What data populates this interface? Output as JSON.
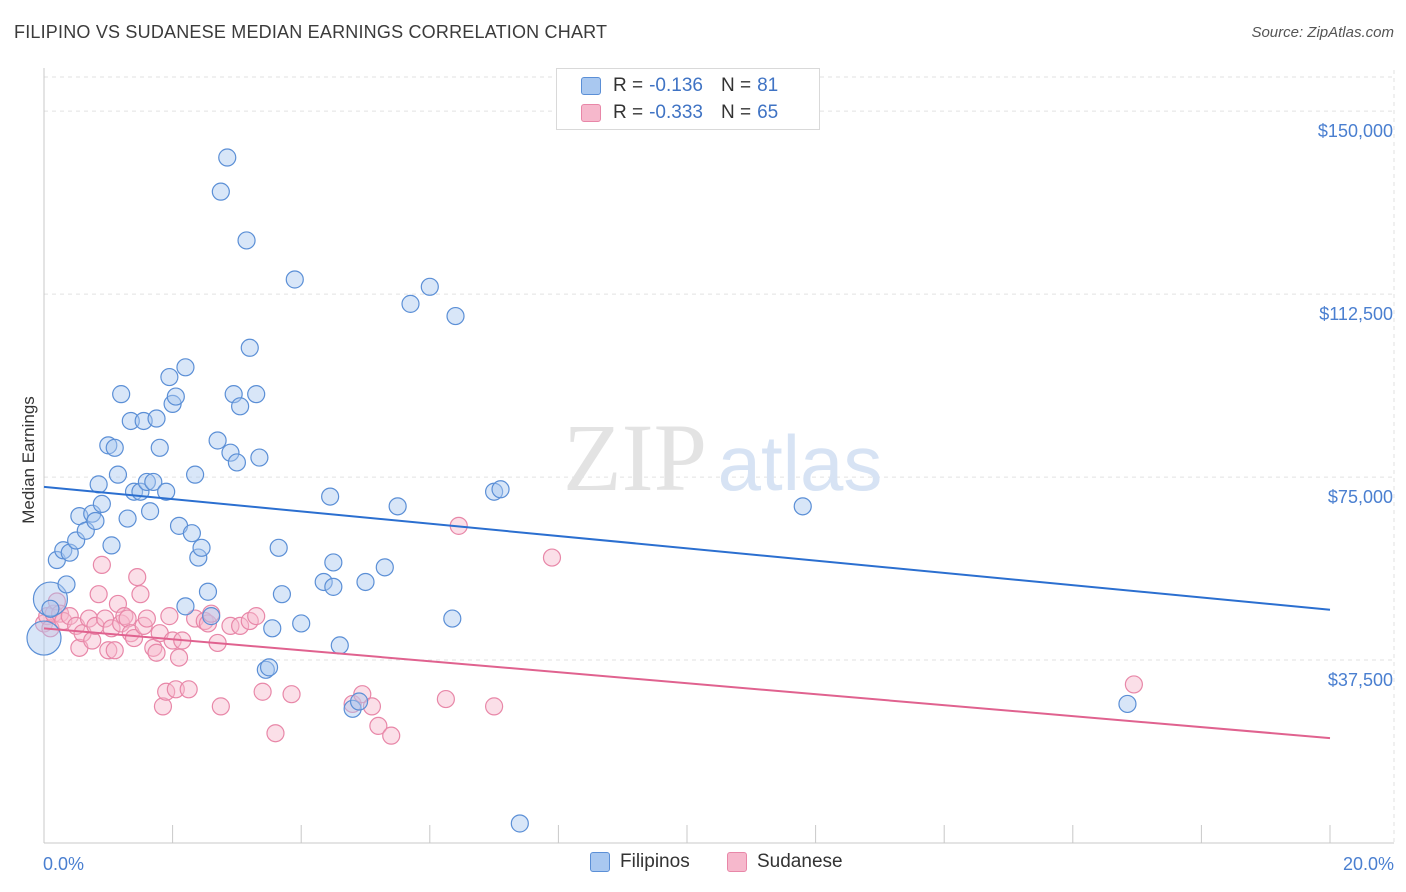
{
  "title": "FILIPINO VS SUDANESE MEDIAN EARNINGS CORRELATION CHART",
  "source": "Source: ZipAtlas.com",
  "watermark": {
    "zip": "ZIP",
    "atlas": "atlas"
  },
  "legend": {
    "rows": [
      {
        "r_label": "R =",
        "r_value": "-0.136",
        "n_label": "N =",
        "n_value": "81"
      },
      {
        "r_label": "R =",
        "r_value": "-0.333",
        "n_label": "N =",
        "n_value": "65"
      }
    ]
  },
  "colors": {
    "filipino_fill": "#a9c8f0",
    "filipino_stroke": "#5b8fd6",
    "filipino_line": "#2b6fd0",
    "sudanese_fill": "#f6b8cc",
    "sudanese_stroke": "#e887a8",
    "sudanese_line": "#e0628f",
    "grid": "#e2e2e2",
    "tick_text": "#4a7fd0"
  },
  "chart_data": {
    "type": "scatter",
    "title": "FILIPINO VS SUDANESE MEDIAN EARNINGS CORRELATION CHART",
    "xlabel": "",
    "ylabel": "Median Earnings",
    "xlim": [
      0,
      20
    ],
    "ylim": [
      0,
      157000
    ],
    "x_tick_labels": [
      "0.0%",
      "20.0%"
    ],
    "y_ticks": [
      {
        "value": 37500,
        "label": "$37,500"
      },
      {
        "value": 75000,
        "label": "$75,000"
      },
      {
        "value": 112500,
        "label": "$112,500"
      },
      {
        "value": 150000,
        "label": "$150,000"
      }
    ],
    "legend_position": "top-center",
    "series": [
      {
        "name": "Filipinos",
        "trend": {
          "x": [
            0,
            20
          ],
          "y": [
            73000,
            47800
          ]
        },
        "points": [
          {
            "x": 0.0,
            "y": 42000,
            "big": true
          },
          {
            "x": 0.1,
            "y": 50000,
            "big": true
          },
          {
            "x": 0.1,
            "y": 48000
          },
          {
            "x": 0.2,
            "y": 58000
          },
          {
            "x": 0.3,
            "y": 60000
          },
          {
            "x": 0.35,
            "y": 53000
          },
          {
            "x": 0.4,
            "y": 59500
          },
          {
            "x": 0.5,
            "y": 62000
          },
          {
            "x": 0.55,
            "y": 67000
          },
          {
            "x": 0.65,
            "y": 64000
          },
          {
            "x": 0.75,
            "y": 67500
          },
          {
            "x": 0.8,
            "y": 66000
          },
          {
            "x": 0.85,
            "y": 73500
          },
          {
            "x": 0.9,
            "y": 69500
          },
          {
            "x": 1.0,
            "y": 81500
          },
          {
            "x": 1.05,
            "y": 61000
          },
          {
            "x": 1.1,
            "y": 81000
          },
          {
            "x": 1.15,
            "y": 75500
          },
          {
            "x": 1.2,
            "y": 92000
          },
          {
            "x": 1.3,
            "y": 66500
          },
          {
            "x": 1.35,
            "y": 86500
          },
          {
            "x": 1.4,
            "y": 72000
          },
          {
            "x": 1.5,
            "y": 72000
          },
          {
            "x": 1.55,
            "y": 86500
          },
          {
            "x": 1.6,
            "y": 74000
          },
          {
            "x": 1.65,
            "y": 68000
          },
          {
            "x": 1.7,
            "y": 74000
          },
          {
            "x": 1.75,
            "y": 87000
          },
          {
            "x": 1.8,
            "y": 81000
          },
          {
            "x": 1.9,
            "y": 72000
          },
          {
            "x": 1.95,
            "y": 95500
          },
          {
            "x": 2.0,
            "y": 90000
          },
          {
            "x": 2.05,
            "y": 91500
          },
          {
            "x": 2.1,
            "y": 65000
          },
          {
            "x": 2.2,
            "y": 48500
          },
          {
            "x": 2.2,
            "y": 97500
          },
          {
            "x": 2.3,
            "y": 63500
          },
          {
            "x": 2.35,
            "y": 75500
          },
          {
            "x": 2.4,
            "y": 58500
          },
          {
            "x": 2.45,
            "y": 60500
          },
          {
            "x": 2.55,
            "y": 51500
          },
          {
            "x": 2.6,
            "y": 46500
          },
          {
            "x": 2.7,
            "y": 82500
          },
          {
            "x": 2.75,
            "y": 133500
          },
          {
            "x": 2.85,
            "y": 140500
          },
          {
            "x": 2.9,
            "y": 80000
          },
          {
            "x": 2.95,
            "y": 92000
          },
          {
            "x": 3.0,
            "y": 78000
          },
          {
            "x": 3.05,
            "y": 89500
          },
          {
            "x": 3.15,
            "y": 123500
          },
          {
            "x": 3.2,
            "y": 101500
          },
          {
            "x": 3.3,
            "y": 92000
          },
          {
            "x": 3.35,
            "y": 79000
          },
          {
            "x": 3.45,
            "y": 35500
          },
          {
            "x": 3.5,
            "y": 36000
          },
          {
            "x": 3.55,
            "y": 44000
          },
          {
            "x": 3.65,
            "y": 60500
          },
          {
            "x": 3.7,
            "y": 51000
          },
          {
            "x": 3.9,
            "y": 115500
          },
          {
            "x": 4.0,
            "y": 45000
          },
          {
            "x": 4.35,
            "y": 53500
          },
          {
            "x": 4.45,
            "y": 71000
          },
          {
            "x": 4.5,
            "y": 52500
          },
          {
            "x": 4.5,
            "y": 57500
          },
          {
            "x": 4.6,
            "y": 40500
          },
          {
            "x": 4.8,
            "y": 27500
          },
          {
            "x": 4.9,
            "y": 29000
          },
          {
            "x": 5.0,
            "y": 53500
          },
          {
            "x": 5.3,
            "y": 56500
          },
          {
            "x": 5.5,
            "y": 69000
          },
          {
            "x": 5.7,
            "y": 110500
          },
          {
            "x": 6.0,
            "y": 114000
          },
          {
            "x": 6.35,
            "y": 46000
          },
          {
            "x": 6.4,
            "y": 108000
          },
          {
            "x": 7.0,
            "y": 72000
          },
          {
            "x": 7.1,
            "y": 72500
          },
          {
            "x": 7.4,
            "y": 4000
          },
          {
            "x": 11.8,
            "y": 69000
          },
          {
            "x": 16.85,
            "y": 28500
          }
        ]
      },
      {
        "name": "Sudanese",
        "trend": {
          "x": [
            0,
            20
          ],
          "y": [
            44000,
            21500
          ]
        },
        "points": [
          {
            "x": 0.0,
            "y": 45000
          },
          {
            "x": 0.05,
            "y": 46500
          },
          {
            "x": 0.1,
            "y": 44000
          },
          {
            "x": 0.15,
            "y": 47000
          },
          {
            "x": 0.2,
            "y": 49500
          },
          {
            "x": 0.25,
            "y": 47000
          },
          {
            "x": 0.3,
            "y": 45500
          },
          {
            "x": 0.4,
            "y": 46500
          },
          {
            "x": 0.5,
            "y": 44500
          },
          {
            "x": 0.55,
            "y": 40000
          },
          {
            "x": 0.6,
            "y": 43000
          },
          {
            "x": 0.7,
            "y": 46000
          },
          {
            "x": 0.75,
            "y": 41500
          },
          {
            "x": 0.8,
            "y": 44500
          },
          {
            "x": 0.85,
            "y": 51000
          },
          {
            "x": 0.9,
            "y": 57000
          },
          {
            "x": 0.95,
            "y": 46000
          },
          {
            "x": 1.0,
            "y": 39500
          },
          {
            "x": 1.05,
            "y": 44000
          },
          {
            "x": 1.1,
            "y": 39500
          },
          {
            "x": 1.15,
            "y": 49000
          },
          {
            "x": 1.2,
            "y": 45000
          },
          {
            "x": 1.25,
            "y": 46500
          },
          {
            "x": 1.3,
            "y": 46000
          },
          {
            "x": 1.35,
            "y": 43000
          },
          {
            "x": 1.4,
            "y": 42000
          },
          {
            "x": 1.45,
            "y": 54500
          },
          {
            "x": 1.5,
            "y": 51000
          },
          {
            "x": 1.55,
            "y": 44500
          },
          {
            "x": 1.6,
            "y": 46000
          },
          {
            "x": 1.7,
            "y": 40000
          },
          {
            "x": 1.75,
            "y": 39000
          },
          {
            "x": 1.8,
            "y": 43000
          },
          {
            "x": 1.85,
            "y": 28000
          },
          {
            "x": 1.9,
            "y": 31000
          },
          {
            "x": 1.95,
            "y": 46500
          },
          {
            "x": 2.0,
            "y": 41500
          },
          {
            "x": 2.05,
            "y": 31500
          },
          {
            "x": 2.1,
            "y": 38000
          },
          {
            "x": 2.15,
            "y": 41500
          },
          {
            "x": 2.25,
            "y": 31500
          },
          {
            "x": 2.35,
            "y": 46000
          },
          {
            "x": 2.5,
            "y": 45500
          },
          {
            "x": 2.55,
            "y": 45000
          },
          {
            "x": 2.6,
            "y": 47000
          },
          {
            "x": 2.7,
            "y": 41000
          },
          {
            "x": 2.75,
            "y": 28000
          },
          {
            "x": 2.9,
            "y": 44500
          },
          {
            "x": 3.05,
            "y": 44500
          },
          {
            "x": 3.2,
            "y": 45500
          },
          {
            "x": 3.3,
            "y": 46500
          },
          {
            "x": 3.4,
            "y": 31000
          },
          {
            "x": 3.6,
            "y": 22500
          },
          {
            "x": 3.85,
            "y": 30500
          },
          {
            "x": 4.8,
            "y": 28500
          },
          {
            "x": 4.95,
            "y": 30500
          },
          {
            "x": 5.1,
            "y": 28000
          },
          {
            "x": 5.2,
            "y": 24000
          },
          {
            "x": 5.4,
            "y": 22000
          },
          {
            "x": 6.25,
            "y": 29500
          },
          {
            "x": 6.45,
            "y": 65000
          },
          {
            "x": 7.0,
            "y": 28000
          },
          {
            "x": 7.9,
            "y": 58500
          },
          {
            "x": 16.95,
            "y": 32500
          }
        ]
      }
    ]
  },
  "bottom_legend": [
    {
      "label": "Filipinos"
    },
    {
      "label": "Sudanese"
    }
  ]
}
